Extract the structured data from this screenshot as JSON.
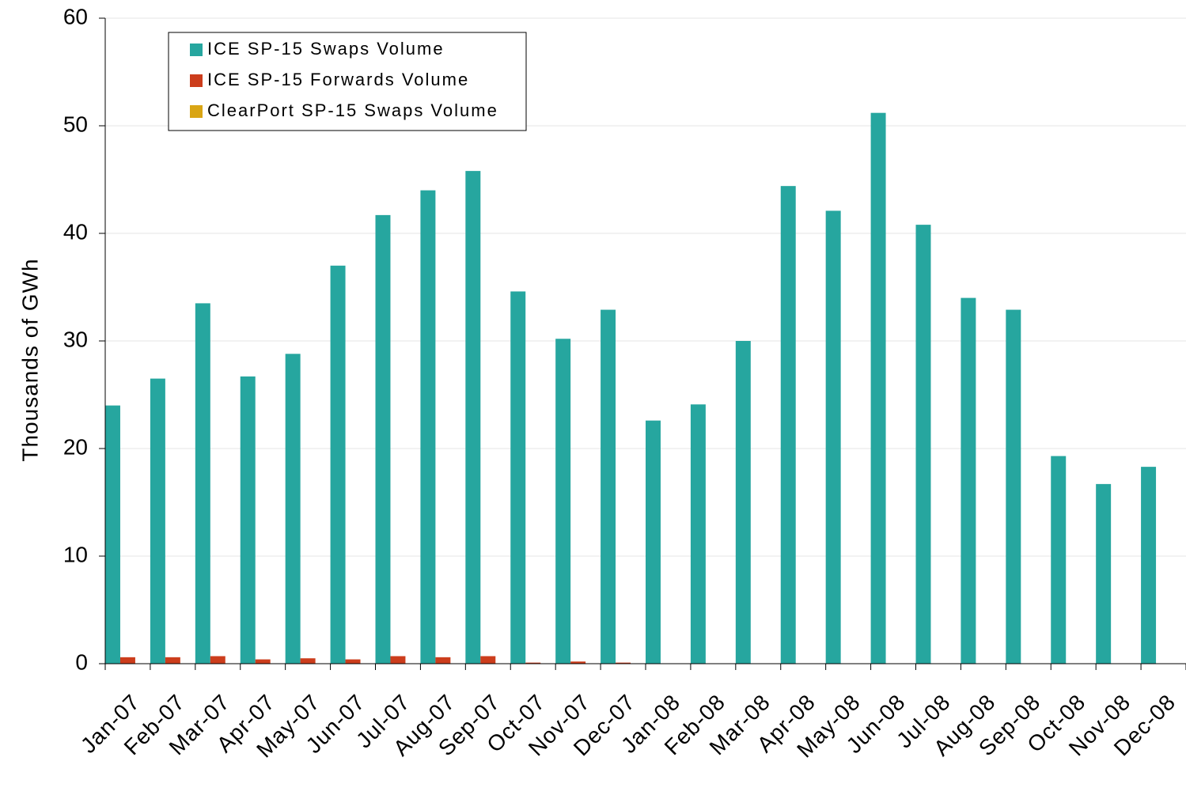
{
  "chart_data": {
    "type": "bar",
    "y_label": "Thousands of GWh",
    "categories": [
      "Jan-07",
      "Feb-07",
      "Mar-07",
      "Apr-07",
      "May-07",
      "Jun-07",
      "Jul-07",
      "Aug-07",
      "Sep-07",
      "Oct-07",
      "Nov-07",
      "Dec-07",
      "Jan-08",
      "Feb-08",
      "Mar-08",
      "Apr-08",
      "May-08",
      "Jun-08",
      "Jul-08",
      "Aug-08",
      "Sep-08",
      "Oct-08",
      "Nov-08",
      "Dec-08"
    ],
    "series": [
      {
        "name": "ICE SP-15 Swaps Volume",
        "color": "#26a69f",
        "values": [
          24.0,
          26.5,
          33.5,
          26.7,
          28.8,
          37.0,
          41.7,
          44.0,
          45.8,
          34.6,
          30.2,
          32.9,
          22.6,
          24.1,
          30.0,
          44.4,
          42.1,
          51.2,
          40.8,
          34.0,
          32.9,
          19.3,
          16.7,
          18.3
        ]
      },
      {
        "name": "ICE SP-15 Forwards Volume",
        "color": "#cc3d1c",
        "values": [
          0.6,
          0.6,
          0.7,
          0.4,
          0.5,
          0.4,
          0.7,
          0.6,
          0.7,
          0.1,
          0.2,
          0.1,
          0,
          0,
          0,
          0,
          0,
          0,
          0,
          0,
          0,
          0,
          0,
          0
        ]
      },
      {
        "name": "ClearPort SP-15 Swaps Volume",
        "color": "#d9a514",
        "values": [
          0,
          0,
          0,
          0,
          0,
          0,
          0,
          0,
          0,
          0,
          0,
          0,
          0,
          0,
          0,
          0,
          0,
          0,
          0,
          0,
          0,
          0,
          0,
          0
        ]
      }
    ],
    "ylim": [
      0,
      60
    ],
    "yticks": [
      0,
      10,
      20,
      30,
      40,
      50,
      60
    ],
    "grid": true,
    "legend": "top-left"
  }
}
